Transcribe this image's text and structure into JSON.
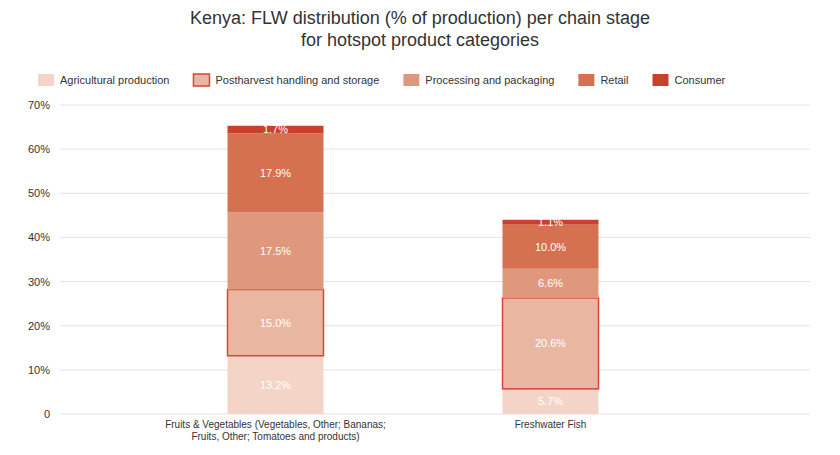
{
  "chart_data": {
    "type": "bar",
    "title": "Kenya: FLW distribution (% of production) per chain stage\nfor hotspot product categories",
    "categories": [
      "Fruits & Vegetables (Vegetables, Other; Bananas;\nFruits, Other; Tomatoes and products)",
      "Freshwater Fish"
    ],
    "stacked": true,
    "data_labels": true,
    "grid": true,
    "legend": "top",
    "ylim": [
      0,
      70
    ],
    "yticks": [
      0,
      {
        "value": 10,
        "label": "10%"
      },
      {
        "value": 20,
        "label": "20%"
      },
      {
        "value": 30,
        "label": "30%"
      },
      {
        "value": 40,
        "label": "40%"
      },
      {
        "value": 50,
        "label": "50%"
      },
      {
        "value": 60,
        "label": "60%"
      },
      {
        "value": 70,
        "label": "70%"
      }
    ],
    "series": [
      {
        "name": "Agricultural production",
        "color": "#f4d4c6",
        "values": [
          13.2,
          5.7
        ],
        "value_labels": [
          "13.2%",
          "5.7%"
        ]
      },
      {
        "name": "Postharvest handling and storage",
        "color": "#e9b7a1",
        "values": [
          15.0,
          20.6
        ],
        "value_labels": [
          "15.0%",
          "20.6%"
        ]
      },
      {
        "name": "Processing and packaging",
        "color": "#e0987c",
        "values": [
          17.5,
          6.6
        ],
        "value_labels": [
          "17.5%",
          "6.6%"
        ]
      },
      {
        "name": "Retail",
        "color": "#d5714f",
        "values": [
          17.9,
          10.0
        ],
        "value_labels": [
          "17.9%",
          "10.0%"
        ]
      },
      {
        "name": "Consumer",
        "color": "#c8412b",
        "values": [
          1.7,
          1.1
        ],
        "value_labels": [
          "1.7%",
          "1.1%"
        ]
      }
    ]
  }
}
